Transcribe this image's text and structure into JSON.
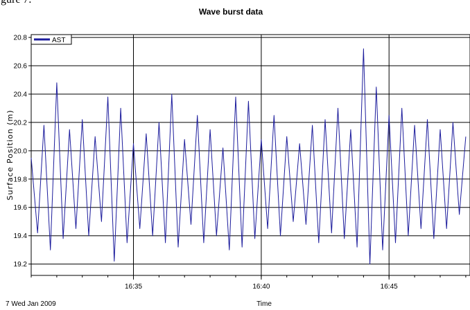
{
  "caption_fragment": "gure 7.",
  "chart_data": {
    "type": "line",
    "title": "Wave burst data",
    "ylabel": "Surface Position (m)",
    "xlabel": "Time",
    "date_label": "7 Wed Jan 2009",
    "ylim": [
      19.12,
      20.82
    ],
    "xlim": [
      "16:31:00",
      "16:48:10"
    ],
    "yticks": [
      19.2,
      19.4,
      19.6,
      19.8,
      20.0,
      20.2,
      20.4,
      20.6,
      20.8
    ],
    "ytick_labels": [
      "19.2",
      "19.4",
      "19.6",
      "19.8",
      "20.0",
      "20.2",
      "20.4",
      "20.6",
      "20.8"
    ],
    "xticks": [
      "16:35",
      "16:40",
      "16:45"
    ],
    "grid": true,
    "legend_position": "top-left",
    "series": [
      {
        "name": "AST",
        "color": "#1c1c9c",
        "x": [
          "16:31:00",
          "16:31:15",
          "16:31:30",
          "16:31:45",
          "16:32:00",
          "16:32:15",
          "16:32:30",
          "16:32:45",
          "16:33:00",
          "16:33:15",
          "16:33:30",
          "16:33:45",
          "16:34:00",
          "16:34:15",
          "16:34:30",
          "16:34:45",
          "16:35:00",
          "16:35:15",
          "16:35:30",
          "16:35:45",
          "16:36:00",
          "16:36:15",
          "16:36:30",
          "16:36:45",
          "16:37:00",
          "16:37:15",
          "16:37:30",
          "16:37:45",
          "16:38:00",
          "16:38:15",
          "16:38:30",
          "16:38:45",
          "16:39:00",
          "16:39:15",
          "16:39:30",
          "16:39:45",
          "16:40:00",
          "16:40:15",
          "16:40:30",
          "16:40:45",
          "16:41:00",
          "16:41:15",
          "16:41:30",
          "16:41:45",
          "16:42:00",
          "16:42:15",
          "16:42:30",
          "16:42:45",
          "16:43:00",
          "16:43:15",
          "16:43:30",
          "16:43:45",
          "16:44:00",
          "16:44:15",
          "16:44:30",
          "16:44:45",
          "16:45:00",
          "16:45:15",
          "16:45:30",
          "16:45:45",
          "16:46:00",
          "16:46:15",
          "16:46:30",
          "16:46:45",
          "16:47:00",
          "16:47:15",
          "16:47:30",
          "16:47:45",
          "16:48:00"
        ],
        "y": [
          19.95,
          19.42,
          20.18,
          19.3,
          20.48,
          19.38,
          20.15,
          19.45,
          20.22,
          19.4,
          20.1,
          19.5,
          20.38,
          19.22,
          20.3,
          19.35,
          20.05,
          19.45,
          20.12,
          19.4,
          20.2,
          19.35,
          20.4,
          19.32,
          20.08,
          19.48,
          20.25,
          19.35,
          20.15,
          19.4,
          20.02,
          19.3,
          20.38,
          19.32,
          20.35,
          19.38,
          20.08,
          19.45,
          20.25,
          19.4,
          20.1,
          19.5,
          20.05,
          19.48,
          20.18,
          19.35,
          20.22,
          19.42,
          20.3,
          19.38,
          20.15,
          19.32,
          20.72,
          19.2,
          20.45,
          19.3,
          20.25,
          19.35,
          20.3,
          19.4,
          20.18,
          19.45,
          20.22,
          19.38,
          20.15,
          19.45,
          20.2,
          19.55,
          20.1
        ]
      }
    ]
  }
}
